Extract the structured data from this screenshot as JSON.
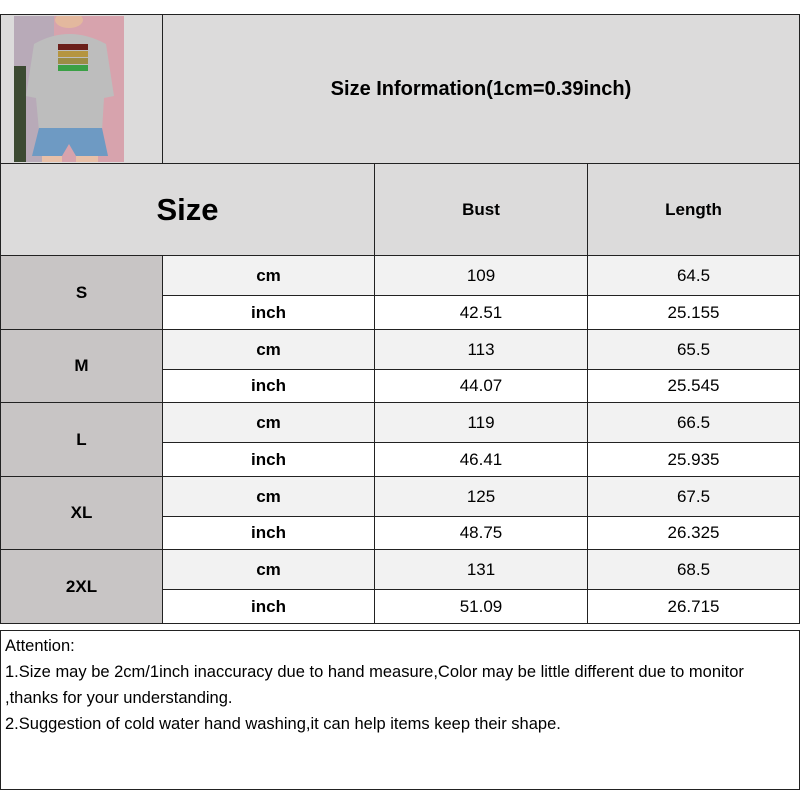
{
  "title": "Size Information(1cm=0.39inch)",
  "product_image": "gray-sweatshirt-model-photo",
  "headers": {
    "size": "Size",
    "bust": "Bust",
    "length": "Length"
  },
  "colors": {
    "header_bg": "#dcdbdb",
    "size_bg": "#c8c5c5",
    "cm_row_bg": "#f2f2f2",
    "inch_row_bg": "#ffffff"
  },
  "rows": [
    {
      "size": "S",
      "cm": {
        "unit": "cm",
        "bust": "109",
        "length": "64.5"
      },
      "inch": {
        "unit": "inch",
        "bust": "42.51",
        "length": "25.155"
      }
    },
    {
      "size": "M",
      "cm": {
        "unit": "cm",
        "bust": "113",
        "length": "65.5"
      },
      "inch": {
        "unit": "inch",
        "bust": "44.07",
        "length": "25.545"
      }
    },
    {
      "size": "L",
      "cm": {
        "unit": "cm",
        "bust": "119",
        "length": "66.5"
      },
      "inch": {
        "unit": "inch",
        "bust": "46.41",
        "length": "25.935"
      }
    },
    {
      "size": "XL",
      "cm": {
        "unit": "cm",
        "bust": "125",
        "length": "67.5"
      },
      "inch": {
        "unit": "inch",
        "bust": "48.75",
        "length": "26.325"
      }
    },
    {
      "size": "2XL",
      "cm": {
        "unit": "cm",
        "bust": "131",
        "length": "68.5"
      },
      "inch": {
        "unit": "inch",
        "bust": "51.09",
        "length": "26.715"
      }
    }
  ],
  "notes": [
    "Attention:",
    "1.Size may be 2cm/1inch inaccuracy due to hand measure,Color may be little different due to monitor ,thanks for your understanding.",
    "2.Suggestion of cold water hand washing,it can help items keep their shape."
  ]
}
